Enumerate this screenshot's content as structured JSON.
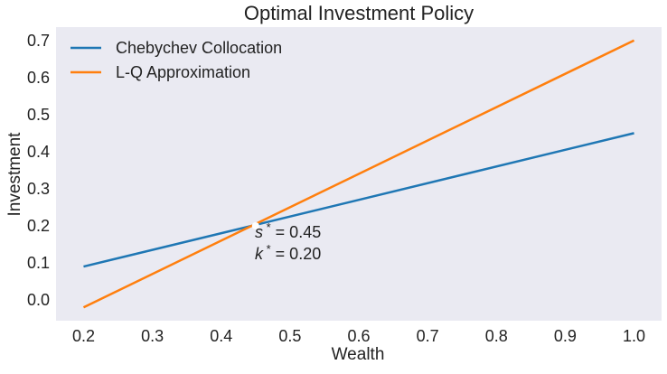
{
  "chart_data": {
    "type": "line",
    "title": "Optimal Investment Policy",
    "xlabel": "Wealth",
    "ylabel": "Investment",
    "xlim": [
      0.16,
      1.04
    ],
    "ylim": [
      -0.056,
      0.736
    ],
    "xticks": [
      0.2,
      0.3,
      0.4,
      0.5,
      0.6,
      0.7,
      0.8,
      0.9,
      1.0
    ],
    "xtick_labels": [
      "0.2",
      "0.3",
      "0.4",
      "0.5",
      "0.6",
      "0.7",
      "0.8",
      "0.9",
      "1.0"
    ],
    "yticks": [
      0.0,
      0.1,
      0.2,
      0.3,
      0.4,
      0.5,
      0.6,
      0.7
    ],
    "ytick_labels": [
      "0.0",
      "0.1",
      "0.2",
      "0.3",
      "0.4",
      "0.5",
      "0.6",
      "0.7"
    ],
    "grid": false,
    "background": "#eaeaf2",
    "legend_placement": "top-left",
    "series": [
      {
        "name": "Chebychev Collocation",
        "color": "#1f77b4",
        "x": [
          0.2,
          1.0
        ],
        "y": [
          0.09,
          0.45
        ]
      },
      {
        "name": "L-Q Approximation",
        "color": "#ff7f0e",
        "x": [
          0.2,
          1.0
        ],
        "y": [
          -0.02,
          0.7
        ]
      }
    ],
    "steady_state_point": {
      "x": 0.45,
      "y": 0.2,
      "color": "#ffffff"
    },
    "annotations": [
      {
        "symbol": "s",
        "text": " = 0.45"
      },
      {
        "symbol": "k",
        "text": " = 0.20"
      }
    ]
  }
}
